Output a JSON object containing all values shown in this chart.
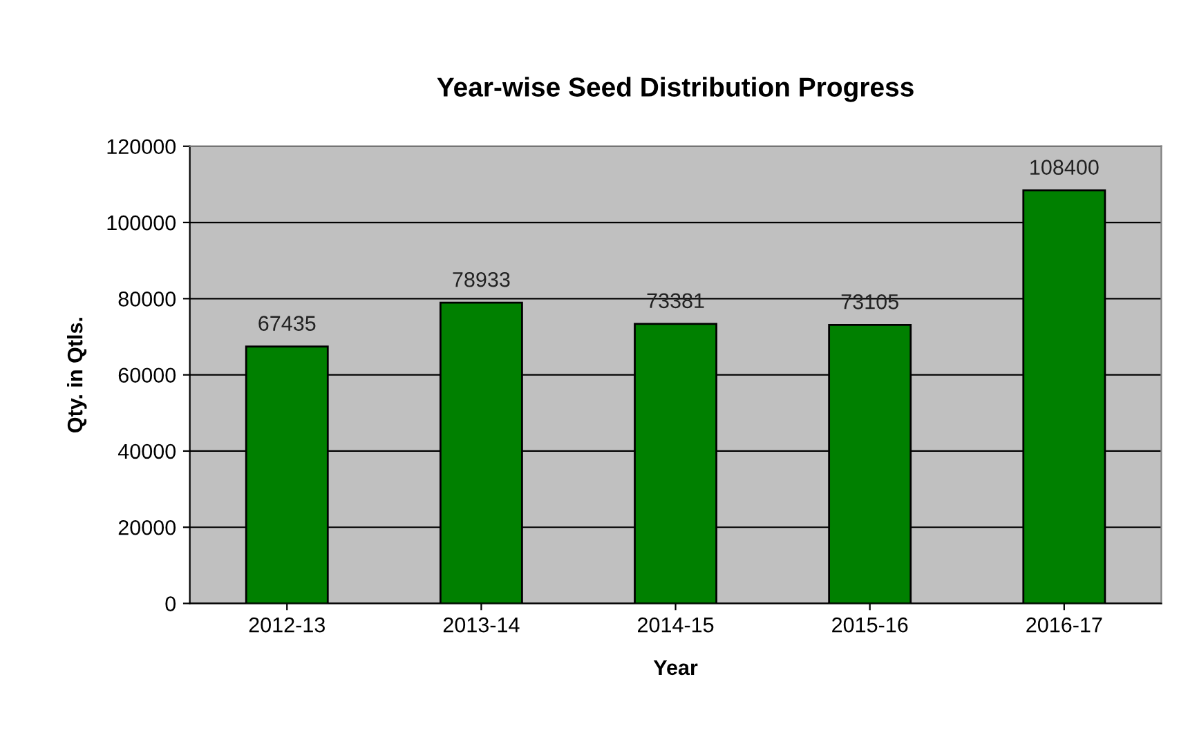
{
  "chart_data": {
    "type": "bar",
    "title": "Year-wise Seed Distribution Progress",
    "xlabel": "Year",
    "ylabel": "Qty. in Qtls.",
    "categories": [
      "2012-13",
      "2013-14",
      "2014-15",
      "2015-16",
      "2016-17"
    ],
    "values": [
      67435,
      78933,
      73381,
      73105,
      108400
    ],
    "color": "#008000",
    "ylim": [
      0,
      120000
    ],
    "yticks": [
      0,
      20000,
      40000,
      60000,
      80000,
      100000,
      120000
    ],
    "grid": "y",
    "data_labels": true
  }
}
